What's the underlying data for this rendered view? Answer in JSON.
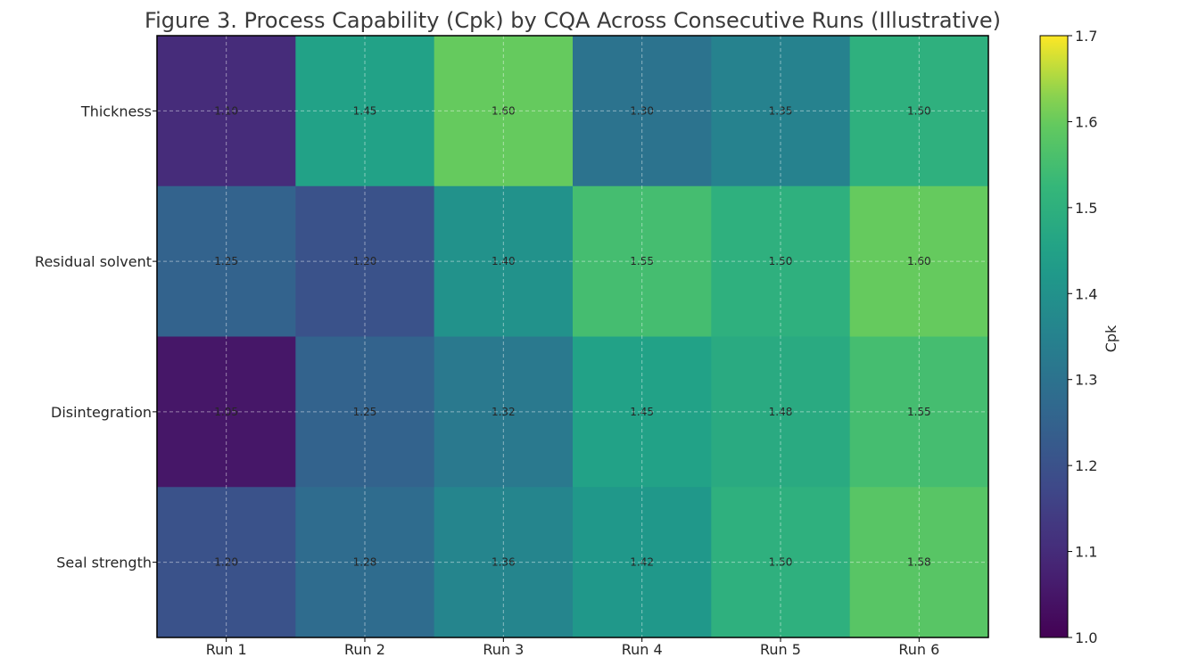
{
  "chart_data": {
    "type": "heatmap",
    "title": "Figure 3. Process Capability (Cpk) by CQA Across Consecutive Runs (Illustrative)",
    "x_categories": [
      "Run 1",
      "Run 2",
      "Run 3",
      "Run 4",
      "Run 5",
      "Run 6"
    ],
    "y_categories": [
      "Thickness",
      "Residual solvent",
      "Disintegration",
      "Seal strength"
    ],
    "values": [
      [
        1.1,
        1.45,
        1.6,
        1.3,
        1.35,
        1.5
      ],
      [
        1.25,
        1.2,
        1.4,
        1.55,
        1.5,
        1.6
      ],
      [
        1.05,
        1.25,
        1.32,
        1.45,
        1.48,
        1.55
      ],
      [
        1.2,
        1.28,
        1.36,
        1.42,
        1.5,
        1.58
      ]
    ],
    "value_labels": [
      [
        "1.10",
        "1.45",
        "1.60",
        "1.30",
        "1.35",
        "1.50"
      ],
      [
        "1.25",
        "1.20",
        "1.40",
        "1.55",
        "1.50",
        "1.60"
      ],
      [
        "1.05",
        "1.25",
        "1.32",
        "1.45",
        "1.48",
        "1.55"
      ],
      [
        "1.20",
        "1.28",
        "1.36",
        "1.42",
        "1.50",
        "1.58"
      ]
    ],
    "colorbar": {
      "label": "Cpk",
      "range": [
        1.0,
        1.7
      ],
      "ticks": [
        "1.0",
        "1.1",
        "1.2",
        "1.3",
        "1.4",
        "1.5",
        "1.6",
        "1.7"
      ],
      "colormap": "viridis"
    },
    "grid": true
  }
}
